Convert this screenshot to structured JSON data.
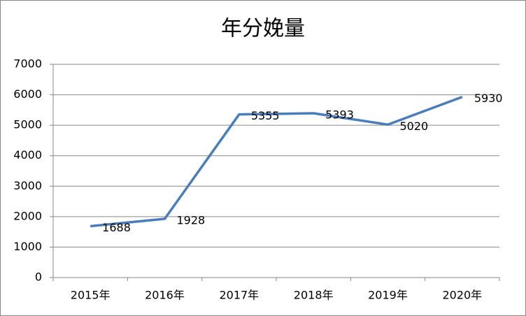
{
  "chart_data": {
    "type": "line",
    "title": "年分娩量",
    "categories": [
      "2015年",
      "2016年",
      "2017年",
      "2018年",
      "2019年",
      "2020年"
    ],
    "series": [
      {
        "name": "年分娩量",
        "color": "#4a7ebb",
        "values": [
          1688,
          1928,
          5355,
          5393,
          5020,
          5930
        ]
      }
    ],
    "ylim": [
      0,
      7000
    ],
    "yticks": [
      0,
      1000,
      2000,
      3000,
      4000,
      5000,
      6000,
      7000
    ],
    "grid": true
  }
}
